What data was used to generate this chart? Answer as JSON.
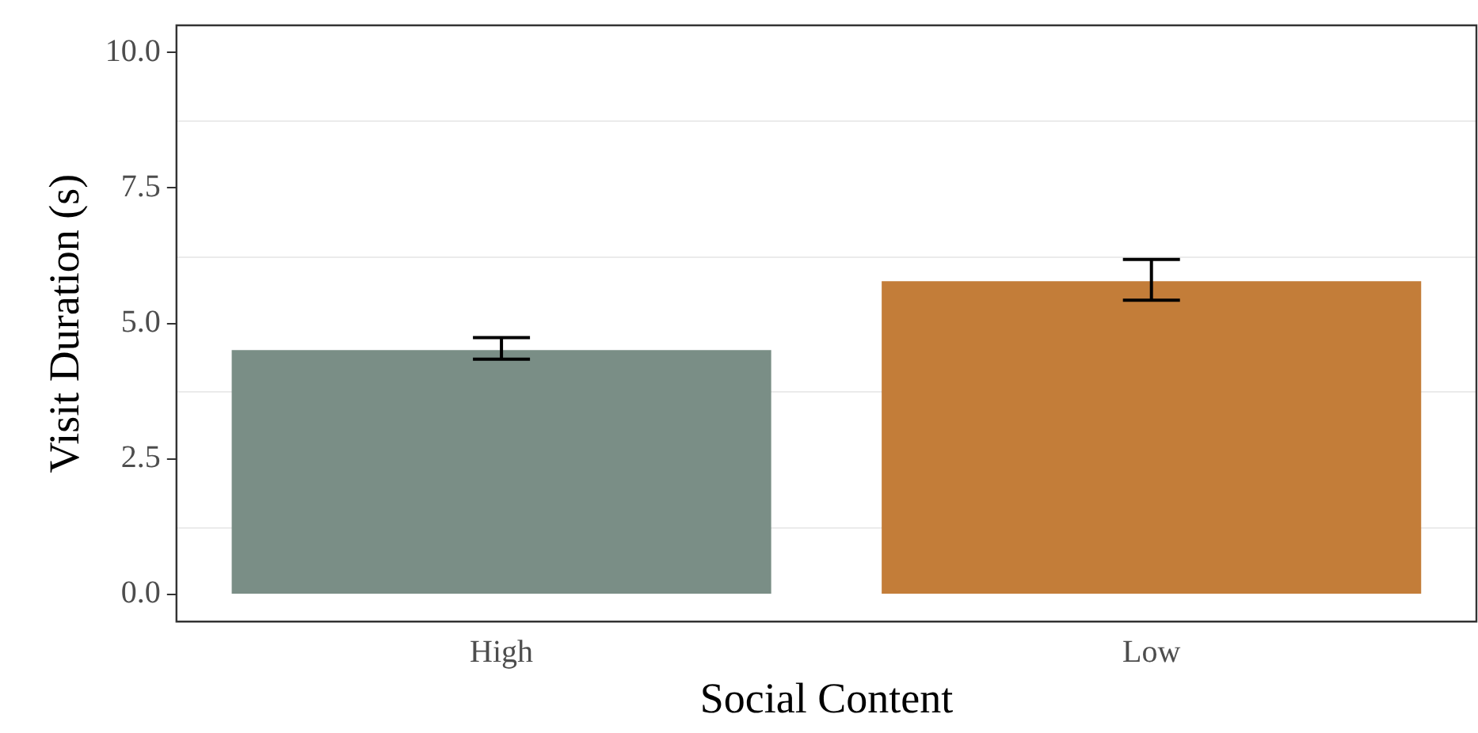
{
  "chart_data": {
    "type": "bar",
    "xlabel": "Social Content",
    "ylabel": "Visit Duration (s)",
    "categories": [
      "High",
      "Low"
    ],
    "values": [
      4.51,
      5.78
    ],
    "colors": [
      "#7a8e86",
      "#c37d39"
    ],
    "errors": [
      [
        4.34,
        4.74
      ],
      [
        5.43,
        6.18
      ]
    ],
    "ylim": [
      -0.5,
      10.5
    ],
    "yticks": [
      {
        "value": 0,
        "label": "0.0"
      },
      2.5,
      {
        "value": 5,
        "label": "5.0"
      },
      7.5,
      {
        "value": 10,
        "label": "10.0"
      }
    ],
    "grid": "y",
    "legend": false
  }
}
